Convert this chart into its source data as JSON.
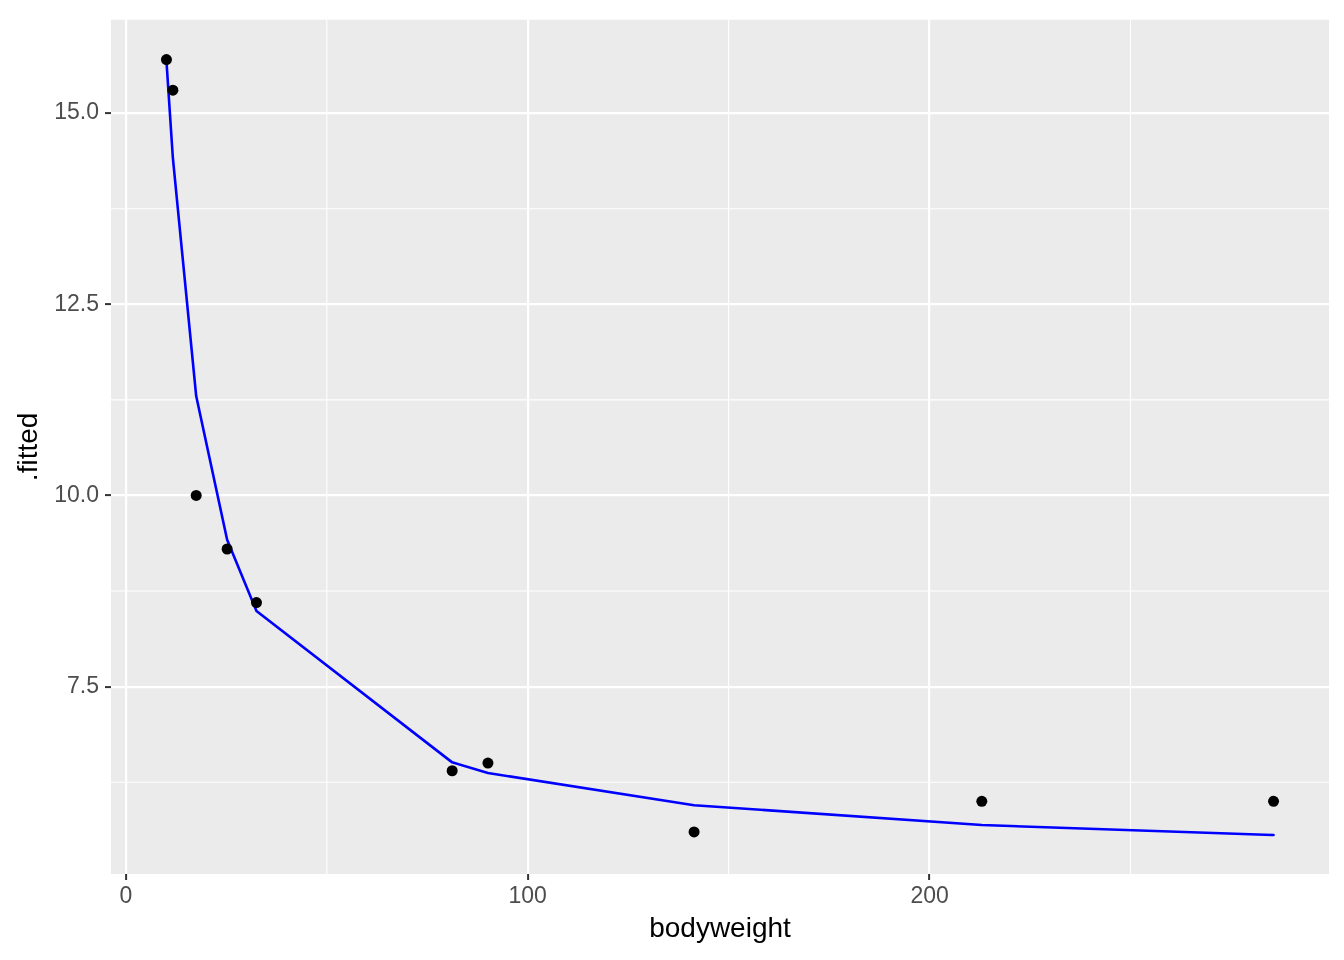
{
  "chart_data": {
    "type": "scatter",
    "xlabel": "bodyweight",
    "ylabel": ".fitted",
    "x": [
      10.1,
      11.7,
      17.5,
      25.2,
      32.5,
      81.2,
      90.1,
      141.4,
      213.0,
      285.6
    ],
    "series": [
      {
        "color": "#000000",
        "marker": "circle",
        "values": [
          15.7,
          15.3,
          10.0,
          9.3,
          8.6,
          6.4,
          6.5,
          5.6,
          6.0,
          6.0
        ]
      },
      {
        "type": "line",
        "color": "#0000ff",
        "marker": "none",
        "line_style": "solid",
        "values": [
          15.68,
          14.41,
          11.3,
          9.42,
          8.49,
          6.51,
          6.37,
          5.95,
          5.69,
          5.56
        ]
      }
    ],
    "xlim": [
      -3.7,
      299.4
    ],
    "ylim": [
      5.05,
      16.22
    ],
    "xticks": [
      0,
      100,
      200
    ],
    "yticks": [
      {
        "value": 7.5,
        "label": "7.5"
      },
      {
        "value": 10,
        "label": "10.0"
      },
      {
        "value": 12.5,
        "label": "12.5"
      },
      {
        "value": 15,
        "label": "15.0"
      }
    ],
    "grid": true,
    "legend": false
  }
}
